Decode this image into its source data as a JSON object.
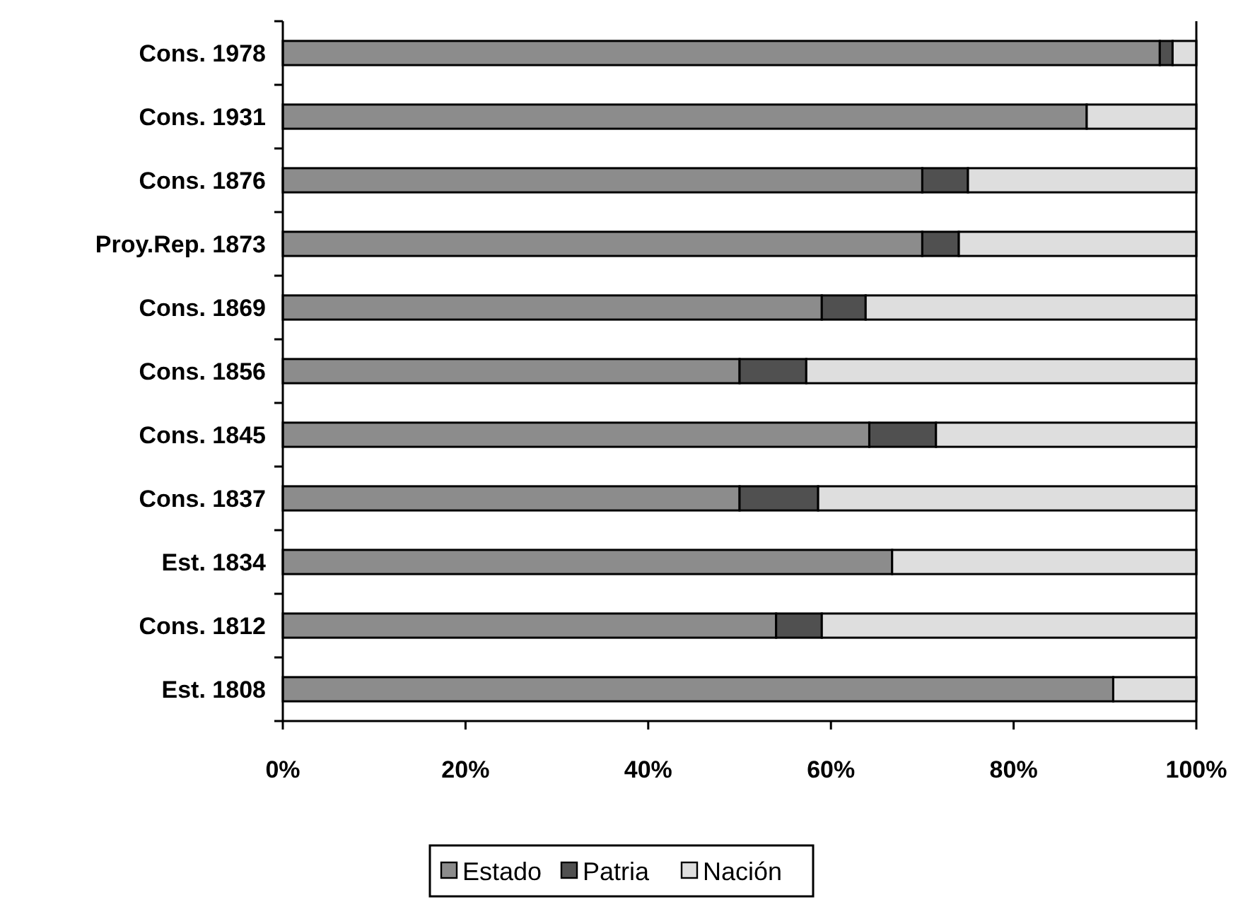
{
  "chart_data": {
    "type": "bar",
    "orientation": "horizontal",
    "stacked": true,
    "categories": [
      "Cons. 1978",
      "Cons. 1931",
      "Cons. 1876",
      "Proy.Rep. 1873",
      "Cons. 1869",
      "Cons. 1856",
      "Cons. 1845",
      "Cons. 1837",
      "Est. 1834",
      "Cons. 1812",
      "Est. 1808"
    ],
    "series": [
      {
        "name": "Estado",
        "color": "#8c8c8c",
        "values": [
          96,
          88,
          70,
          70,
          59,
          50,
          64.2,
          50,
          66.7,
          54,
          90.9
        ]
      },
      {
        "name": "Patria",
        "color": "#505050",
        "values": [
          1.4,
          0,
          5,
          4,
          4.8,
          7.3,
          7.3,
          8.6,
          0,
          5,
          0
        ]
      },
      {
        "name": "Nación",
        "color": "#dedede",
        "values": [
          2.6,
          12,
          25,
          26,
          36.2,
          42.7,
          28.5,
          41.4,
          33.3,
          41,
          9.1
        ]
      }
    ],
    "xlim": [
      0,
      100
    ],
    "xticks": [
      {
        "value": 0,
        "label": "0%"
      },
      {
        "value": 20,
        "label": "20%"
      },
      {
        "value": 40,
        "label": "40%"
      },
      {
        "value": 60,
        "label": "60%"
      },
      {
        "value": 80,
        "label": "80%"
      },
      {
        "value": 100,
        "label": "100%"
      }
    ],
    "grid": false,
    "legend": "bottom"
  }
}
